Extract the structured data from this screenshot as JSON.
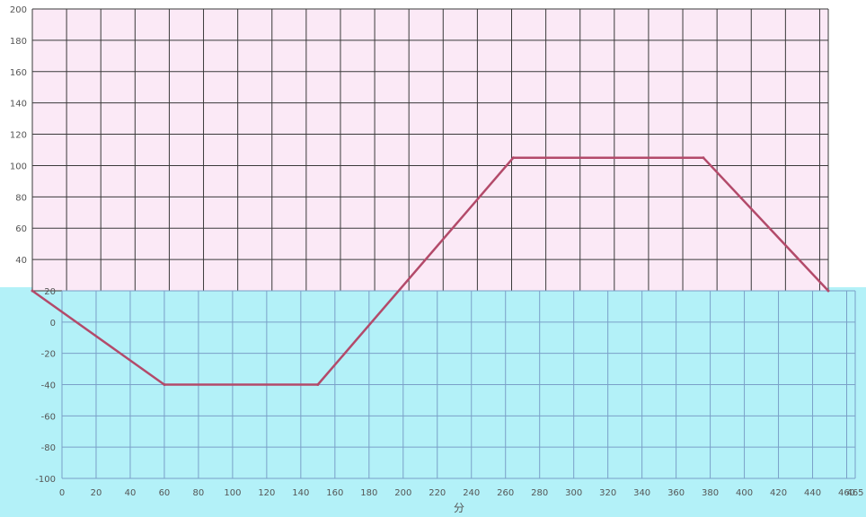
{
  "chart_data": {
    "type": "line",
    "xlabel": "分",
    "ylabel": "",
    "xlim": [
      0,
      465
    ],
    "ylim": [
      -100,
      200
    ],
    "x_ticks": [
      0,
      20,
      40,
      60,
      80,
      100,
      120,
      140,
      160,
      180,
      200,
      220,
      240,
      260,
      280,
      300,
      320,
      340,
      360,
      380,
      400,
      420,
      440,
      460,
      465
    ],
    "y_ticks": [
      -100,
      -80,
      -60,
      -40,
      -20,
      0,
      20,
      40,
      60,
      80,
      100,
      120,
      140,
      160,
      180,
      200
    ],
    "grid": true,
    "series": [
      {
        "color": "#b34a6a",
        "x": [
          0,
          60,
          150,
          281,
          392,
          465
        ],
        "y": [
          20,
          -40,
          -40,
          105,
          105,
          20
        ]
      }
    ]
  },
  "bands": {
    "upper_color": "#fbe9f6",
    "lower_color": "#b3f1f8"
  }
}
